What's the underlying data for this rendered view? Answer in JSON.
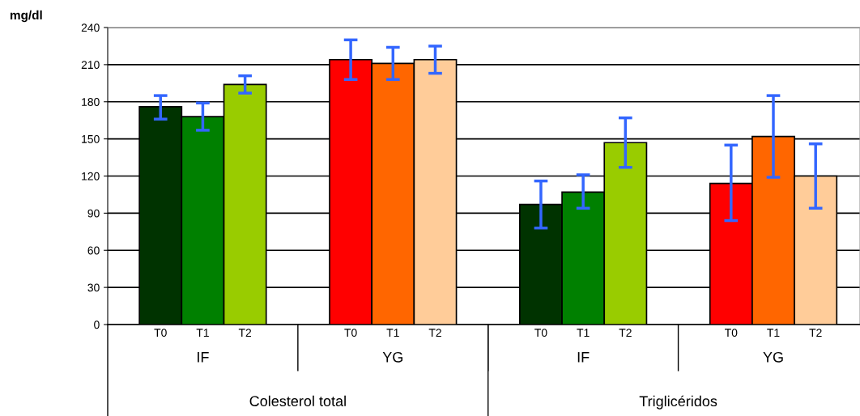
{
  "chart_data": {
    "type": "bar",
    "ylabel": "mg/dl",
    "categories": [
      "T0",
      "T1",
      "T2",
      "T0",
      "T1",
      "T2",
      "T0",
      "T1",
      "T2",
      "T0",
      "T1",
      "T2"
    ],
    "values": [
      176,
      168,
      194,
      214,
      211,
      214,
      97,
      107,
      147,
      114,
      152,
      120
    ],
    "colors": [
      "#003300",
      "#008000",
      "#99cc00",
      "#ff0000",
      "#ff6600",
      "#ffcc99",
      "#003300",
      "#008000",
      "#99cc00",
      "#ff0000",
      "#ff6600",
      "#ffcc99"
    ],
    "errors": [
      [
        166,
        185
      ],
      [
        157,
        179
      ],
      [
        187,
        201
      ],
      [
        198,
        230
      ],
      [
        198,
        224
      ],
      [
        203,
        225
      ],
      [
        78,
        116
      ],
      [
        94,
        121
      ],
      [
        127,
        167
      ],
      [
        84,
        145
      ],
      [
        119,
        185
      ],
      [
        94,
        146
      ]
    ],
    "ylim": [
      0,
      240
    ],
    "yticks": [
      0,
      30,
      60,
      90,
      120,
      150,
      180,
      210,
      240
    ],
    "grid": "y",
    "annotations": [
      "IF",
      "YG",
      "IF",
      "YG",
      "Colesterol total",
      "Triglicéridos"
    ]
  }
}
